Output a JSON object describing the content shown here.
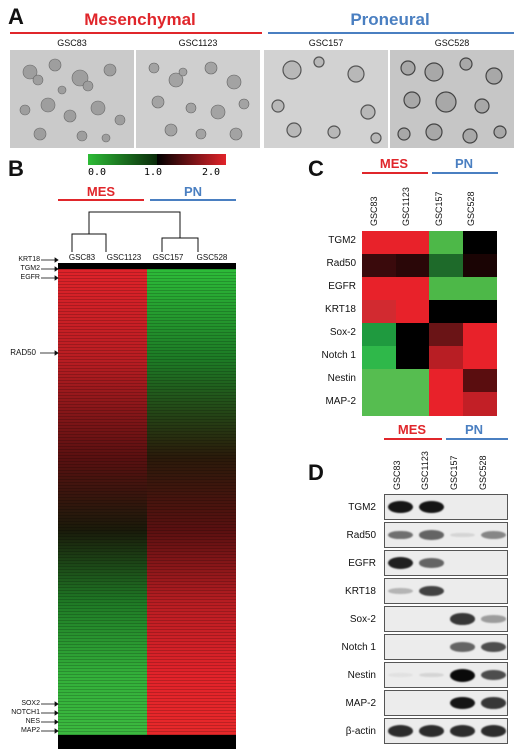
{
  "panels": {
    "a": "A",
    "b": "B",
    "c": "C",
    "d": "D"
  },
  "panel_a": {
    "mesenchymal_title": "Mesenchymal",
    "proneural_title": "Proneural",
    "samples": [
      "GSC83",
      "GSC1123",
      "GSC157",
      "GSC528"
    ]
  },
  "panel_b": {
    "scale_ticks": [
      "0.0",
      "1.0",
      "2.0"
    ],
    "mes_label": "MES",
    "pn_label": "PN",
    "samples": [
      "GSC83",
      "GSC1123",
      "GSC157",
      "GSC528"
    ],
    "top_genes": [
      "KRT18",
      "TGM2",
      "EGFR"
    ],
    "mid_gene": "RAD50",
    "bottom_genes": [
      "SOX2",
      "NOTCH1",
      "NES",
      "MAP2"
    ]
  },
  "panel_c": {
    "mes_label": "MES",
    "pn_label": "PN",
    "samples": [
      "GSC83",
      "GSC1123",
      "GSC157",
      "GSC528"
    ],
    "rows": [
      "TGM2",
      "Rad50",
      "EGFR",
      "KRT18",
      "Sox-2",
      "Notch 1",
      "Nestin",
      "MAP-2"
    ],
    "colors": [
      [
        "#e8222a",
        "#e8222a",
        "#4db848",
        "#000000"
      ],
      [
        "#3a0a0c",
        "#2a0708",
        "#1e6a2a",
        "#1a0404"
      ],
      [
        "#e8222a",
        "#e8222a",
        "#4db848",
        "#4db848"
      ],
      [
        "#d22a30",
        "#e8222a",
        "#000000",
        "#000000"
      ],
      [
        "#1f9a3f",
        "#000000",
        "#6a1416",
        "#e8222a"
      ],
      [
        "#2fb84a",
        "#000000",
        "#b81e24",
        "#e8222a"
      ],
      [
        "#56bd50",
        "#56bd50",
        "#e8222a",
        "#5a0d0f"
      ],
      [
        "#56bd50",
        "#56bd50",
        "#e8222a",
        "#c21f26"
      ]
    ]
  },
  "panel_d": {
    "mes_label": "MES",
    "pn_label": "PN",
    "samples": [
      "GSC83",
      "GSC1123",
      "GSC157",
      "GSC528"
    ],
    "rows": [
      "TGM2",
      "Rad50",
      "EGFR",
      "KRT18",
      "Sox-2",
      "Notch 1",
      "Nestin",
      "MAP-2",
      "β-actin"
    ]
  },
  "colors": {
    "mes": "#e0262b",
    "pn": "#4a7fc1"
  }
}
